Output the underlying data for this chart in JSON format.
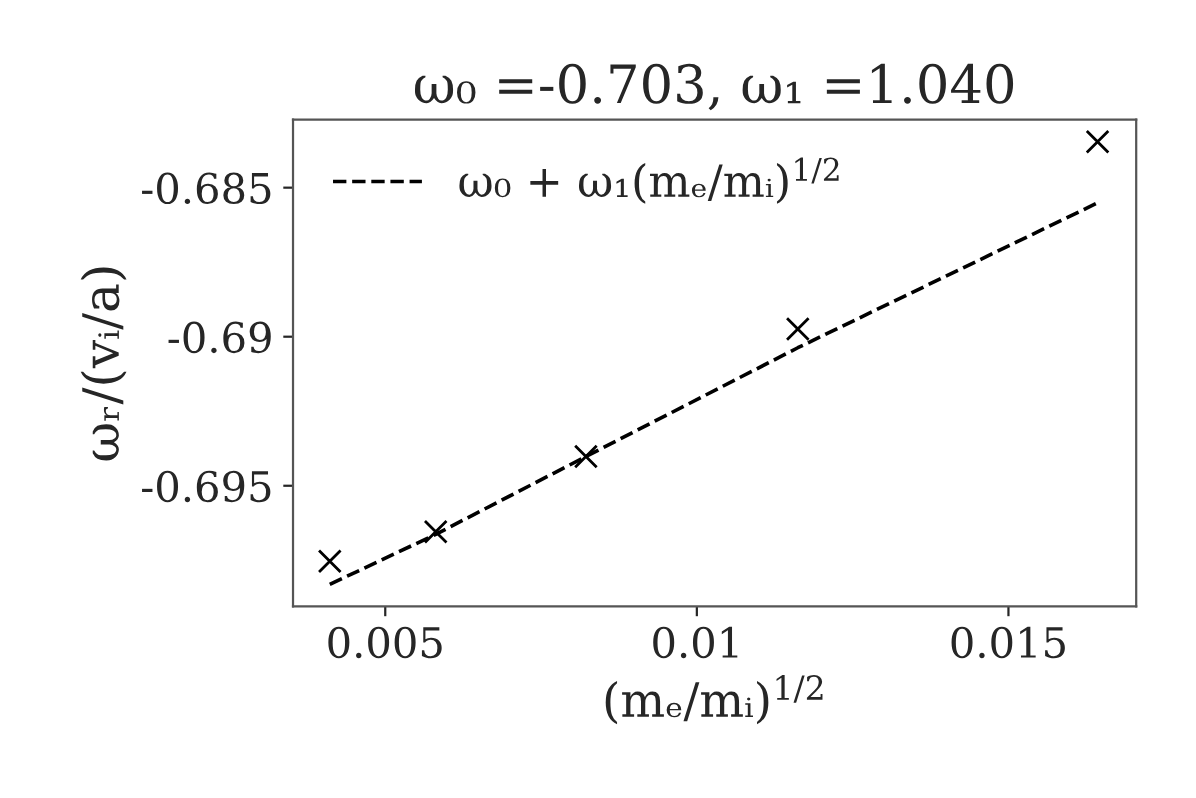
{
  "chart_data": {
    "type": "line",
    "title": "ω₀ =-0.703, ω₁ =1.040",
    "xlabel": "(mₑ/mᵢ)$^{1/2}$",
    "ylabel": "ωᵣ/(vᵢ/a)",
    "series": [
      {
        "type": "scatter",
        "color": "#000000",
        "marker": "cross",
        "x": [
          0.00411,
          0.00581,
          0.00822,
          0.01162,
          0.01643
        ],
        "values": [
          -0.69753,
          -0.69654,
          -0.69402,
          -0.68974,
          -0.68346
        ]
      },
      {
        "name": "ω₀ + ω₁(mₑ/mᵢ)$^{1/2}$",
        "color": "#000000",
        "line_style": "dashed",
        "x": [
          0.00411,
          0.00581,
          0.00822,
          0.01162,
          0.01643
        ],
        "values": [
          -0.69831,
          -0.69663,
          -0.69402,
          -0.69037,
          -0.68551
        ]
      }
    ],
    "xlim": [
      0.00352,
      0.01705
    ],
    "ylim": [
      -0.69905,
      -0.68272
    ],
    "xticks": [
      0.005,
      0.01,
      0.015
    ],
    "yticks": [
      -0.695,
      -0.69,
      -0.685
    ],
    "grid": false,
    "legend": "top left"
  }
}
